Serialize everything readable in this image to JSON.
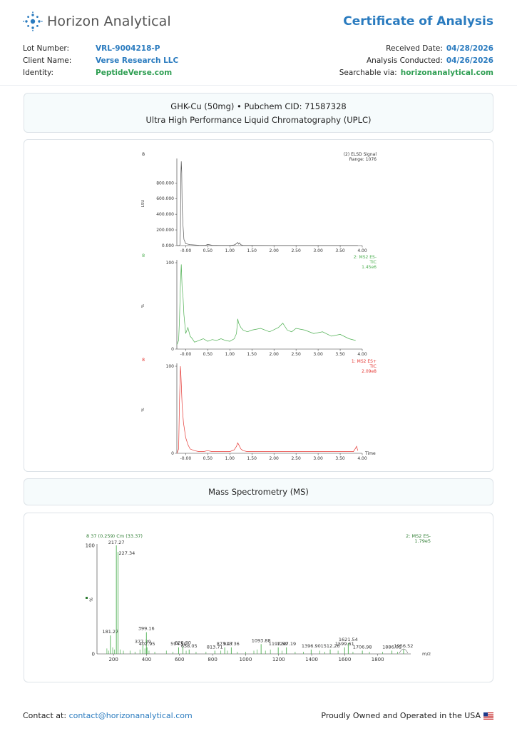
{
  "brand": {
    "name": "Horizon Analytical",
    "logo_icon": "dotted-sun-logo-icon"
  },
  "document_title": "Certificate of Analysis",
  "details_left": [
    {
      "label": "Lot Number:",
      "value": "VRL-9004218-P",
      "color": "#2a7bbf"
    },
    {
      "label": "Client Name:",
      "value": "Verse Research LLC",
      "color": "#2a7bbf"
    },
    {
      "label": "Identity:",
      "value": "PeptideVerse.com",
      "color": "#2e9e52"
    }
  ],
  "details_right": [
    {
      "label": "Received Date:",
      "value": "04/28/2026",
      "color": "#2a7bbf"
    },
    {
      "label": "Analysis Conducted:",
      "value": "04/26/2026",
      "color": "#2a7bbf"
    },
    {
      "label": "Searchable via:",
      "value": "horizonanalytical.com",
      "color": "#2e9e52"
    }
  ],
  "uplc_section": {
    "line1": "GHK-Cu (50mg) • Pubchem CID: 71587328",
    "line2": "Ultra High Performance Liquid Chromatography (UPLC)"
  },
  "ms_section": {
    "title": "Mass Spectrometry (MS)"
  },
  "footer": {
    "contact_label": "Contact at:",
    "contact_email": "contact@horizonanalytical.com",
    "tagline": "Proudly Owned and Operated in the USA",
    "flag_icon": "us-flag-icon"
  },
  "chart_data": [
    {
      "type": "line",
      "panel_tag": "8",
      "legend": [
        "(2) ELSD Signal",
        "Range: 1076"
      ],
      "ylabel": "LSU",
      "x_ticks": [
        "-0.00",
        "0.50",
        "1.00",
        "1.50",
        "2.00",
        "2.50",
        "3.00",
        "3.50",
        "4.00"
      ],
      "y_ticks": [
        "0.000",
        "200.000",
        "400.000",
        "600.000",
        "800.000"
      ],
      "xlim": [
        -0.2,
        4.0
      ],
      "ylim": [
        0,
        1076
      ],
      "color": "#555555",
      "x": [
        -0.2,
        -0.15,
        -0.13,
        -0.12,
        -0.11,
        -0.1,
        -0.09,
        -0.08,
        -0.06,
        -0.04,
        0.0,
        0.1,
        0.3,
        0.45,
        0.5,
        0.6,
        0.8,
        1.0,
        1.1,
        1.15,
        1.18,
        1.2,
        1.22,
        1.25,
        1.3,
        1.5,
        2.0,
        2.5,
        3.0,
        3.5,
        3.9
      ],
      "y": [
        0,
        0,
        10,
        200,
        900,
        1076,
        950,
        500,
        250,
        80,
        25,
        12,
        5,
        4,
        15,
        5,
        3,
        3,
        8,
        25,
        40,
        18,
        35,
        10,
        4,
        3,
        2,
        2,
        2,
        2,
        2
      ]
    },
    {
      "type": "line",
      "panel_tag": "8",
      "legend": [
        "2: MS2 ES-",
        "TIC",
        "1.45e6"
      ],
      "ylabel": "%",
      "x_ticks": [
        "-0.00",
        "0.50",
        "1.00",
        "1.50",
        "2.00",
        "2.50",
        "3.00",
        "3.50",
        "4.00"
      ],
      "y_ticks": [
        "0",
        "100"
      ],
      "xlim": [
        -0.2,
        4.0
      ],
      "ylim": [
        0,
        100
      ],
      "color": "#4caf50",
      "x": [
        -0.2,
        -0.16,
        -0.14,
        -0.12,
        -0.1,
        -0.08,
        -0.06,
        -0.04,
        0.0,
        0.05,
        0.1,
        0.15,
        0.2,
        0.3,
        0.4,
        0.5,
        0.6,
        0.7,
        0.8,
        0.9,
        1.0,
        1.1,
        1.15,
        1.18,
        1.2,
        1.25,
        1.3,
        1.4,
        1.5,
        1.7,
        1.9,
        2.1,
        2.2,
        2.3,
        2.4,
        2.5,
        2.7,
        2.9,
        3.1,
        3.3,
        3.5,
        3.7,
        3.85
      ],
      "y": [
        5,
        10,
        35,
        75,
        98,
        70,
        60,
        40,
        18,
        25,
        15,
        12,
        8,
        10,
        12,
        9,
        11,
        10,
        12,
        10,
        9,
        12,
        18,
        35,
        30,
        25,
        22,
        20,
        22,
        24,
        20,
        25,
        30,
        22,
        20,
        24,
        22,
        18,
        20,
        15,
        17,
        12,
        10
      ]
    },
    {
      "type": "line",
      "panel_tag": "8",
      "legend": [
        "1: MS2 ES+",
        "TIC",
        "2.09e8"
      ],
      "ylabel": "%",
      "x_label": "Time",
      "x_ticks": [
        "-0.00",
        "0.50",
        "1.00",
        "1.50",
        "2.00",
        "2.50",
        "3.00",
        "3.50",
        "4.00"
      ],
      "y_ticks": [
        "0",
        "100"
      ],
      "xlim": [
        -0.2,
        4.0
      ],
      "ylim": [
        0,
        100
      ],
      "color": "#e53935",
      "x": [
        -0.2,
        -0.16,
        -0.14,
        -0.12,
        -0.11,
        -0.1,
        -0.08,
        -0.05,
        0.0,
        0.05,
        0.1,
        0.2,
        0.3,
        0.4,
        0.5,
        0.6,
        0.8,
        1.0,
        1.1,
        1.15,
        1.18,
        1.2,
        1.25,
        1.3,
        1.4,
        1.6,
        2.0,
        2.5,
        3.0,
        3.5,
        3.8,
        3.85,
        3.87,
        3.9
      ],
      "y": [
        0,
        5,
        60,
        100,
        92,
        80,
        55,
        35,
        18,
        10,
        5,
        3,
        2,
        2,
        3,
        2,
        2,
        2,
        4,
        8,
        12,
        10,
        5,
        3,
        2,
        2,
        2,
        2,
        2,
        2,
        2,
        6,
        8,
        3
      ]
    },
    {
      "type": "bar",
      "panel_tag": "8 37 (0.259) Cm (33.37)",
      "legend": [
        "2: MS2 ES-",
        "1.79e5"
      ],
      "ylabel": "%",
      "x_label": "m/z",
      "x_ticks": [
        "200",
        "400",
        "600",
        "800",
        "1000",
        "1200",
        "1400",
        "1600",
        "1800"
      ],
      "y_ticks": [
        "0",
        "100"
      ],
      "xlim": [
        100,
        2000
      ],
      "ylim": [
        0,
        100
      ],
      "color": "#4caf50",
      "peaks": [
        {
          "mz": 181.27,
          "rel": 17,
          "label": "181.27"
        },
        {
          "mz": 217.27,
          "rel": 100,
          "label": "217.27"
        },
        {
          "mz": 227.34,
          "rel": 94,
          "label": "227.34"
        },
        {
          "mz": 377.39,
          "rel": 8,
          "label": "377.39"
        },
        {
          "mz": 399.16,
          "rel": 20,
          "label": "399.16"
        },
        {
          "mz": 402.95,
          "rel": 6,
          "label": "402.95"
        },
        {
          "mz": 594.5,
          "rel": 6,
          "label": "594.50"
        },
        {
          "mz": 620.3,
          "rel": 7,
          "label": "620.30"
        },
        {
          "mz": 658.05,
          "rel": 4,
          "label": "658.05"
        },
        {
          "mz": 813.71,
          "rel": 3,
          "label": "813.71"
        },
        {
          "mz": 873.47,
          "rel": 6,
          "label": "873.47"
        },
        {
          "mz": 913.36,
          "rel": 6,
          "label": "913.36"
        },
        {
          "mz": 1093.88,
          "rel": 9,
          "label": "1093.88"
        },
        {
          "mz": 1197.59,
          "rel": 6,
          "label": "1197.59"
        },
        {
          "mz": 1247.19,
          "rel": 6,
          "label": "1247.19"
        },
        {
          "mz": 1396.9,
          "rel": 4,
          "label": "1396.90"
        },
        {
          "mz": 1512.26,
          "rel": 4,
          "label": "1512.26"
        },
        {
          "mz": 1599.61,
          "rel": 6,
          "label": "1599.61"
        },
        {
          "mz": 1621.54,
          "rel": 10,
          "label": "1621.54"
        },
        {
          "mz": 1706.98,
          "rel": 3,
          "label": "1706.98"
        },
        {
          "mz": 1886.01,
          "rel": 3,
          "label": "1886.01"
        },
        {
          "mz": 1956.52,
          "rel": 4,
          "label": "1956.52"
        }
      ],
      "minor": [
        {
          "mz": 160,
          "rel": 5
        },
        {
          "mz": 170,
          "rel": 3
        },
        {
          "mz": 195,
          "rel": 6
        },
        {
          "mz": 205,
          "rel": 4
        },
        {
          "mz": 240,
          "rel": 4
        },
        {
          "mz": 260,
          "rel": 3
        },
        {
          "mz": 300,
          "rel": 3
        },
        {
          "mz": 330,
          "rel": 2
        },
        {
          "mz": 360,
          "rel": 4
        },
        {
          "mz": 390,
          "rel": 5
        },
        {
          "mz": 415,
          "rel": 3
        },
        {
          "mz": 450,
          "rel": 2
        },
        {
          "mz": 520,
          "rel": 3
        },
        {
          "mz": 560,
          "rel": 2
        },
        {
          "mz": 640,
          "rel": 3
        },
        {
          "mz": 700,
          "rel": 2
        },
        {
          "mz": 760,
          "rel": 2
        },
        {
          "mz": 850,
          "rel": 3
        },
        {
          "mz": 890,
          "rel": 3
        },
        {
          "mz": 950,
          "rel": 2
        },
        {
          "mz": 1000,
          "rel": 2
        },
        {
          "mz": 1050,
          "rel": 3
        },
        {
          "mz": 1070,
          "rel": 4
        },
        {
          "mz": 1120,
          "rel": 3
        },
        {
          "mz": 1150,
          "rel": 4
        },
        {
          "mz": 1220,
          "rel": 3
        },
        {
          "mz": 1300,
          "rel": 2
        },
        {
          "mz": 1350,
          "rel": 2
        },
        {
          "mz": 1450,
          "rel": 3
        },
        {
          "mz": 1480,
          "rel": 2
        },
        {
          "mz": 1560,
          "rel": 3
        },
        {
          "mz": 1650,
          "rel": 2
        },
        {
          "mz": 1750,
          "rel": 2
        },
        {
          "mz": 1830,
          "rel": 2
        },
        {
          "mz": 1920,
          "rel": 2
        }
      ]
    }
  ]
}
